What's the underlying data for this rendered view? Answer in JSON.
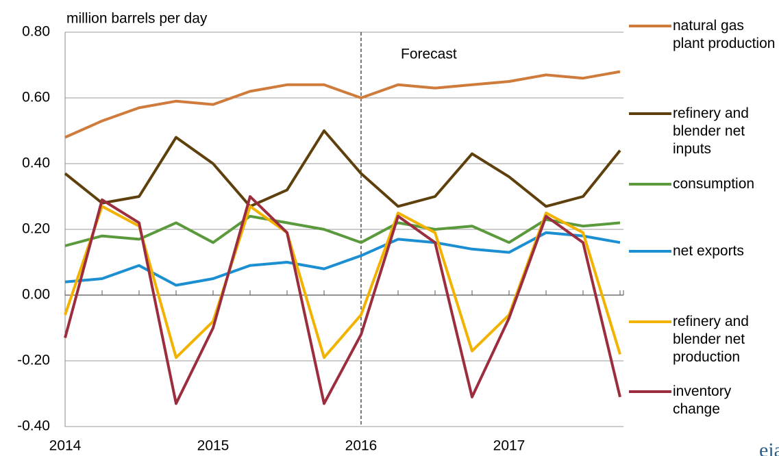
{
  "chart_data": {
    "type": "line",
    "y_axis_label": "million barrels per day",
    "categories": [
      "2014",
      null,
      null,
      null,
      "2015",
      null,
      null,
      null,
      "2016",
      null,
      null,
      null,
      "2017",
      null,
      null,
      null
    ],
    "ylim": [
      -0.4,
      0.8
    ],
    "yticks": [
      {
        "value": -0.4,
        "label": "-0.40"
      },
      {
        "value": -0.2,
        "label": "-0.20"
      },
      {
        "value": 0,
        "label": "0.00"
      },
      {
        "value": 0.2,
        "label": "0.20"
      },
      {
        "value": 0.4,
        "label": "0.40"
      },
      {
        "value": 0.6,
        "label": "0.60"
      },
      {
        "value": 0.8,
        "label": "0.80"
      }
    ],
    "grid": true,
    "forecast": {
      "label": "Forecast",
      "x": "2016"
    },
    "logo": "eia",
    "series": [
      {
        "name": "natural gas plant production",
        "color": "#cf7b3c",
        "values": [
          0.48,
          0.53,
          0.57,
          0.59,
          0.58,
          0.62,
          0.64,
          0.64,
          0.6,
          0.64,
          0.63,
          0.64,
          0.65,
          0.67,
          0.66,
          0.68
        ]
      },
      {
        "name": "refinery and blender net inputs",
        "color": "#5e400c",
        "values": [
          0.37,
          0.28,
          0.3,
          0.48,
          0.4,
          0.27,
          0.32,
          0.5,
          0.37,
          0.27,
          0.3,
          0.43,
          0.36,
          0.27,
          0.3,
          0.44
        ]
      },
      {
        "name": "consumption",
        "color": "#5b9a3c",
        "values": [
          0.15,
          0.18,
          0.17,
          0.22,
          0.16,
          0.24,
          0.22,
          0.2,
          0.16,
          0.22,
          0.2,
          0.21,
          0.16,
          0.23,
          0.21,
          0.22
        ]
      },
      {
        "name": "net exports",
        "color": "#1b8fd2",
        "values": [
          0.04,
          0.05,
          0.09,
          0.03,
          0.05,
          0.09,
          0.1,
          0.08,
          0.12,
          0.17,
          0.16,
          0.14,
          0.13,
          0.19,
          0.18,
          0.16
        ]
      },
      {
        "name": "refinery and blender net production",
        "color": "#f2b300",
        "values": [
          -0.06,
          0.27,
          0.21,
          -0.19,
          -0.08,
          0.27,
          0.19,
          -0.19,
          -0.06,
          0.25,
          0.19,
          -0.17,
          -0.06,
          0.25,
          0.19,
          -0.18
        ]
      },
      {
        "name": "inventory change",
        "color": "#9b2d3e",
        "values": [
          -0.13,
          0.29,
          0.22,
          -0.33,
          -0.1,
          0.3,
          0.19,
          -0.33,
          -0.12,
          0.24,
          0.16,
          -0.31,
          -0.07,
          0.24,
          0.16,
          -0.31
        ]
      }
    ]
  }
}
